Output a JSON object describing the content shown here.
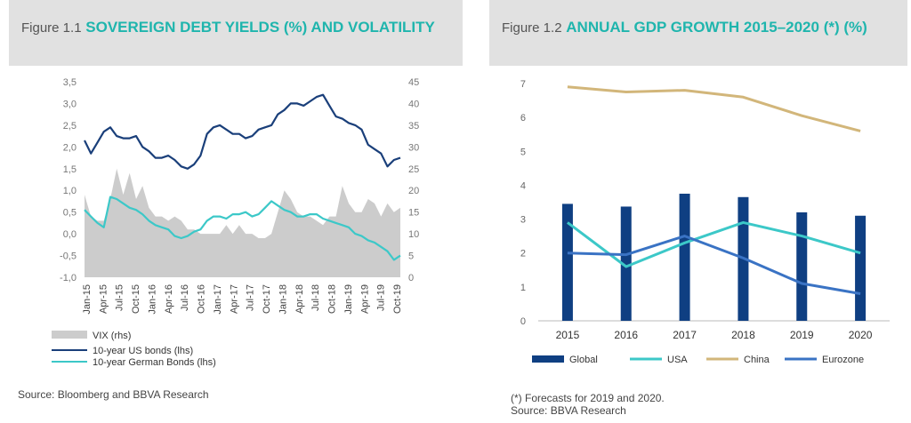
{
  "figure1": {
    "number": "Figure 1.1",
    "title": "SOVEREIGN DEBT YIELDS (%) AND VOLATILITY",
    "source": "Source: Bloomberg and BBVA Research"
  },
  "figure2": {
    "number": "Figure 1.2",
    "title": "ANNUAL GDP GROWTH 2015–2020 (*) (%)",
    "footnote": "(*) Forecasts for 2019 and 2020.",
    "source": "Source: BBVA Research"
  },
  "colors": {
    "navy": "#1a3f7a",
    "teal": "#3cc8c8",
    "china": "#d2b67a",
    "euro": "#3a73c4",
    "global": "#0f3f82",
    "vix": "#cccccc"
  },
  "chart_data": [
    {
      "type": "line",
      "title": "SOVEREIGN DEBT YIELDS (%) AND VOLATILITY",
      "x_ticks": [
        "Jan-15",
        "Apr-15",
        "Jul-15",
        "Oct-15",
        "Jan-16",
        "Apr-16",
        "Jul-16",
        "Oct-16",
        "Jan-17",
        "Apr-17",
        "Jul-17",
        "Oct-17",
        "Jan-18",
        "Apr-18",
        "Jul-18",
        "Oct-18",
        "Jan-19",
        "Apr-19",
        "Jul-19",
        "Oct-19"
      ],
      "y_left": {
        "ticks": [
          "-1,0",
          "-0,5",
          "0,0",
          "0,5",
          "1,0",
          "1,5",
          "2,0",
          "2,5",
          "3,0",
          "3,5"
        ],
        "lim": [
          -1.0,
          3.5
        ]
      },
      "y_right": {
        "ticks": [
          "0",
          "5",
          "10",
          "15",
          "20",
          "25",
          "30",
          "35",
          "40",
          "45"
        ],
        "lim": [
          0,
          45
        ]
      },
      "legend": [
        "VIX  (rhs)",
        "10-year US bonds (lhs)",
        "10-year German Bonds (lhs)"
      ],
      "series": [
        {
          "name": "VIX  (rhs)",
          "axis": "right",
          "kind": "area",
          "values": [
            19,
            14,
            13,
            13,
            18,
            25,
            19,
            24,
            18,
            21,
            16,
            14,
            14,
            13,
            14,
            13,
            11,
            11,
            10,
            10,
            10,
            10,
            12,
            10,
            12,
            10,
            10,
            9,
            9,
            10,
            15,
            20,
            18,
            15,
            14,
            14,
            13,
            12,
            14,
            14,
            21,
            17,
            15,
            15,
            18,
            17,
            14,
            17,
            15,
            16
          ]
        },
        {
          "name": "10-year US bonds (lhs)",
          "axis": "left",
          "kind": "line",
          "values": [
            2.15,
            1.85,
            2.1,
            2.35,
            2.45,
            2.25,
            2.2,
            2.2,
            2.25,
            2.0,
            1.9,
            1.75,
            1.75,
            1.8,
            1.7,
            1.55,
            1.5,
            1.6,
            1.8,
            2.3,
            2.45,
            2.5,
            2.4,
            2.3,
            2.3,
            2.2,
            2.25,
            2.4,
            2.45,
            2.5,
            2.75,
            2.85,
            3.0,
            3.0,
            2.95,
            3.05,
            3.15,
            3.2,
            2.95,
            2.7,
            2.65,
            2.55,
            2.5,
            2.4,
            2.05,
            1.95,
            1.85,
            1.55,
            1.7,
            1.75
          ]
        },
        {
          "name": "10-year German Bonds (lhs)",
          "axis": "left",
          "kind": "line",
          "values": [
            0.55,
            0.4,
            0.25,
            0.15,
            0.85,
            0.8,
            0.7,
            0.6,
            0.55,
            0.45,
            0.3,
            0.2,
            0.15,
            0.1,
            -0.05,
            -0.1,
            -0.05,
            0.05,
            0.1,
            0.3,
            0.4,
            0.4,
            0.35,
            0.45,
            0.45,
            0.5,
            0.4,
            0.45,
            0.6,
            0.75,
            0.65,
            0.55,
            0.5,
            0.4,
            0.4,
            0.45,
            0.45,
            0.35,
            0.3,
            0.25,
            0.2,
            0.15,
            0.0,
            -0.05,
            -0.15,
            -0.2,
            -0.3,
            -0.4,
            -0.6,
            -0.5
          ]
        }
      ]
    },
    {
      "type": "bar",
      "title": "ANNUAL GDP GROWTH 2015–2020 (*) (%)",
      "categories": [
        "2015",
        "2016",
        "2017",
        "2018",
        "2019",
        "2020"
      ],
      "y_ticks": [
        "0",
        "1",
        "2",
        "3",
        "4",
        "5",
        "6",
        "7"
      ],
      "ylim": [
        0,
        7
      ],
      "series": [
        {
          "name": "Global",
          "kind": "bar",
          "values": [
            3.45,
            3.37,
            3.75,
            3.65,
            3.2,
            3.1
          ]
        },
        {
          "name": "USA",
          "kind": "line",
          "values": [
            2.9,
            1.6,
            2.3,
            2.9,
            2.5,
            2.0
          ]
        },
        {
          "name": "China",
          "kind": "line",
          "values": [
            6.9,
            6.75,
            6.8,
            6.6,
            6.05,
            5.6
          ]
        },
        {
          "name": "Eurozone",
          "kind": "line",
          "values": [
            2.0,
            1.95,
            2.5,
            1.85,
            1.1,
            0.8
          ]
        }
      ]
    }
  ]
}
